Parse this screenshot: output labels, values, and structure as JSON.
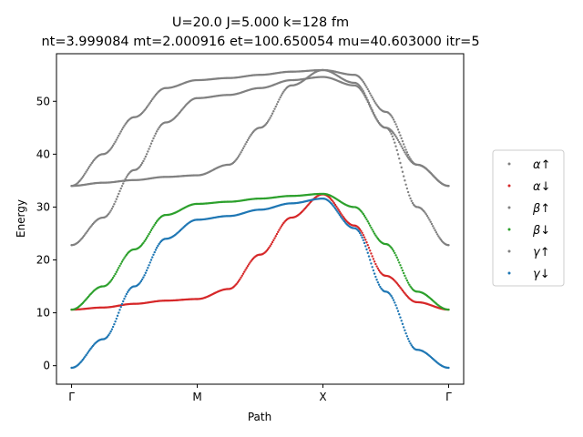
{
  "chart_data": {
    "type": "scatter",
    "title_line1": "U=20.0 J=5.000 k=128 fm",
    "title_line2": "nt=3.999084 mt=2.000916 et=100.650054 mu=40.603000 itr=5",
    "xlabel": "Path",
    "ylabel": "Energy",
    "ylim": [
      -3.5,
      59
    ],
    "xlim": [
      -0.12,
      3.12
    ],
    "xticks": [
      {
        "value": 0,
        "label": "Γ"
      },
      {
        "value": 1,
        "label": "M"
      },
      {
        "value": 2,
        "label": "X"
      },
      {
        "value": 3,
        "label": "Γ"
      }
    ],
    "yticks": [
      0,
      10,
      20,
      30,
      40,
      50
    ],
    "grid": false,
    "legend_placement": "outside-right",
    "series": [
      {
        "name": "α↑",
        "legend_label": "α↑",
        "color": "#808080",
        "x": [
          0,
          0.25,
          0.5,
          0.75,
          1,
          1.25,
          1.5,
          1.75,
          2,
          2.25,
          2.5,
          2.75,
          3
        ],
        "y": [
          34.0,
          34.6,
          35.1,
          35.7,
          36.0,
          38.0,
          45.0,
          53.0,
          55.9,
          53.5,
          45.0,
          38.0,
          34.0
        ]
      },
      {
        "name": "α↓",
        "legend_label": "α↓",
        "color": "#d62728",
        "x": [
          0,
          0.25,
          0.5,
          0.75,
          1,
          1.25,
          1.5,
          1.75,
          2,
          2.25,
          2.5,
          2.75,
          3
        ],
        "y": [
          10.6,
          11.0,
          11.7,
          12.3,
          12.6,
          14.5,
          21.0,
          28.0,
          32.4,
          26.5,
          17.0,
          12.0,
          10.6
        ]
      },
      {
        "name": "β↑",
        "legend_label": "β↑",
        "color": "#808080",
        "x": [
          0,
          0.25,
          0.5,
          0.75,
          1,
          1.25,
          1.5,
          1.75,
          2,
          2.25,
          2.5,
          2.75,
          3
        ],
        "y": [
          22.8,
          28.0,
          37.0,
          46.0,
          50.6,
          51.2,
          52.5,
          54.0,
          54.6,
          53.0,
          45.0,
          30.0,
          22.8
        ]
      },
      {
        "name": "β↓",
        "legend_label": "β↓",
        "color": "#2ca02c",
        "x": [
          0,
          0.25,
          0.5,
          0.75,
          1,
          1.25,
          1.5,
          1.75,
          2,
          2.25,
          2.5,
          2.75,
          3
        ],
        "y": [
          10.6,
          15.0,
          22.0,
          28.5,
          30.6,
          31.0,
          31.6,
          32.1,
          32.5,
          30.0,
          23.0,
          14.0,
          10.6
        ]
      },
      {
        "name": "γ↑",
        "legend_label": "γ↑",
        "color": "#808080",
        "x": [
          0,
          0.25,
          0.5,
          0.75,
          1,
          1.25,
          1.5,
          1.75,
          2,
          2.25,
          2.5,
          2.75,
          3
        ],
        "y": [
          34.0,
          40.0,
          47.0,
          52.5,
          54.0,
          54.4,
          55.0,
          55.6,
          55.9,
          55.0,
          48.0,
          38.0,
          34.0
        ]
      },
      {
        "name": "γ↓",
        "legend_label": "γ↓",
        "color": "#1f77b4",
        "x": [
          0,
          0.25,
          0.5,
          0.75,
          1,
          1.25,
          1.5,
          1.75,
          2,
          2.25,
          2.5,
          2.75,
          3
        ],
        "y": [
          -0.4,
          5.0,
          15.0,
          24.0,
          27.6,
          28.3,
          29.5,
          30.7,
          31.6,
          26.0,
          14.0,
          3.0,
          -0.4
        ]
      }
    ]
  }
}
